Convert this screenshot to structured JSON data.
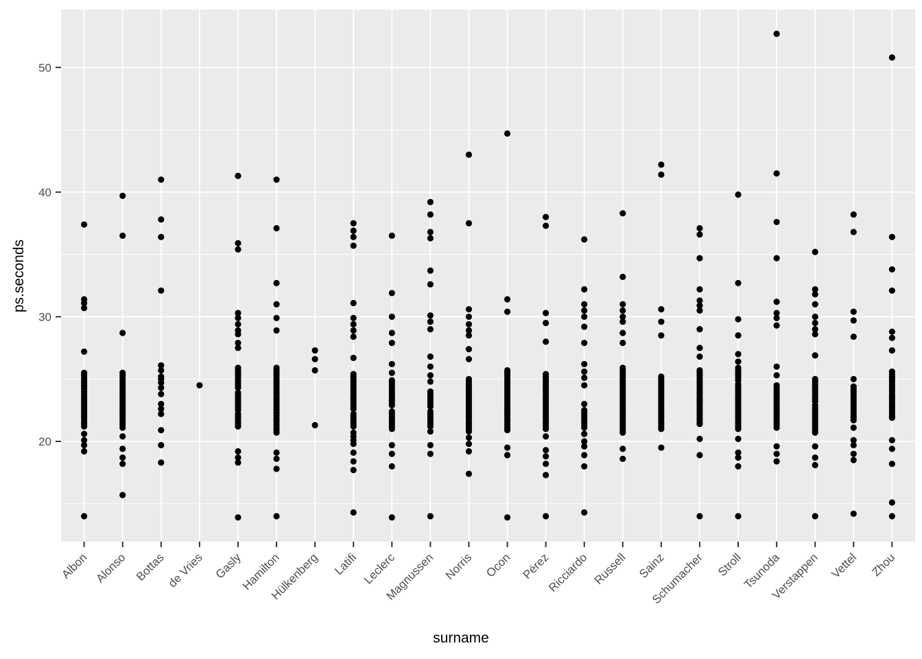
{
  "figure": {
    "background": "#FFFFFF"
  },
  "chart_data": {
    "type": "scatter",
    "title": "",
    "xlabel": "surname",
    "ylabel": "ps.seconds",
    "legend": "none",
    "grid": "on",
    "panel_background": "#EBEBEB",
    "gridline_color": "#FFFFFF",
    "point_color": "#000000",
    "tick_label_color": "#4D4D4D",
    "tick_mark_color": "#333333",
    "axis_title_color": "#000000",
    "ylim": [
      11.96,
      54.64
    ],
    "y_ticks": [
      20,
      30,
      40,
      50
    ],
    "y_minor_ticks": [
      15,
      25,
      35,
      45
    ],
    "x_categories": [
      "Albon",
      "Alonso",
      "Bottas",
      "de Vries",
      "Gasly",
      "Hamilton",
      "Hülkenberg",
      "Latifi",
      "Leclerc",
      "Magnussen",
      "Norris",
      "Ocon",
      "Pérez",
      "Ricciardo",
      "Russell",
      "Sainz",
      "Schumacher",
      "Stroll",
      "Tsunoda",
      "Verstappen",
      "Vettel",
      "Zhou"
    ],
    "series": [
      {
        "name": "Albon",
        "values": [
          37.4,
          31.4,
          31.1,
          30.7,
          27.2,
          25.5,
          25.3,
          25.1,
          24.9,
          24.7,
          24.5,
          24.4,
          24.2,
          24.0,
          23.8,
          23.6,
          23.4,
          23.2,
          23.0,
          22.8,
          22.6,
          22.4,
          22.2,
          22.0,
          21.8,
          21.6,
          21.4,
          21.2,
          20.6,
          20.1,
          19.7,
          19.2,
          14.0
        ]
      },
      {
        "name": "Alonso",
        "values": [
          39.7,
          36.5,
          28.7,
          25.5,
          25.3,
          25.1,
          24.9,
          24.7,
          24.5,
          24.3,
          24.1,
          23.9,
          23.7,
          23.5,
          23.3,
          23.1,
          22.9,
          22.7,
          22.5,
          22.3,
          22.1,
          21.9,
          21.7,
          21.5,
          21.3,
          21.1,
          20.4,
          19.4,
          18.7,
          18.2,
          15.7
        ]
      },
      {
        "name": "Bottas",
        "values": [
          41.0,
          37.8,
          36.4,
          32.1,
          26.1,
          25.7,
          25.2,
          25.0,
          24.7,
          24.3,
          23.8,
          23.0,
          22.6,
          22.2,
          20.9,
          19.7,
          18.3
        ]
      },
      {
        "name": "de Vries",
        "values": [
          24.5
        ]
      },
      {
        "name": "Gasly",
        "values": [
          41.3,
          35.9,
          35.4,
          30.3,
          29.9,
          29.4,
          28.9,
          28.6,
          27.9,
          27.5,
          25.9,
          25.7,
          25.5,
          25.3,
          25.1,
          24.9,
          24.7,
          24.5,
          24.3,
          23.9,
          23.7,
          23.5,
          23.3,
          23.1,
          22.9,
          22.7,
          22.5,
          22.2,
          22.0,
          21.8,
          21.6,
          21.4,
          21.2,
          19.2,
          18.7,
          18.3,
          13.9
        ]
      },
      {
        "name": "Hamilton",
        "values": [
          41.0,
          37.1,
          32.7,
          31.0,
          29.9,
          28.9,
          25.9,
          25.7,
          25.5,
          25.3,
          25.1,
          24.9,
          24.7,
          24.5,
          24.3,
          24.1,
          23.9,
          23.7,
          23.5,
          23.3,
          23.1,
          22.9,
          22.7,
          22.5,
          22.3,
          22.1,
          21.9,
          21.7,
          21.5,
          21.3,
          21.1,
          20.9,
          20.7,
          19.1,
          18.6,
          17.8,
          14.0
        ]
      },
      {
        "name": "Hülkenberg",
        "values": [
          27.3,
          26.6,
          25.7,
          21.3
        ]
      },
      {
        "name": "Latifi",
        "values": [
          37.5,
          36.9,
          36.4,
          35.7,
          31.1,
          29.9,
          29.4,
          28.9,
          28.4,
          26.7,
          25.4,
          25.2,
          25.0,
          24.8,
          24.6,
          24.4,
          24.2,
          24.0,
          23.8,
          23.6,
          23.4,
          23.2,
          23.0,
          22.8,
          22.6,
          22.2,
          22.0,
          21.8,
          21.6,
          21.4,
          21.2,
          20.7,
          20.4,
          20.1,
          19.8,
          19.1,
          18.4,
          17.7,
          14.3
        ]
      },
      {
        "name": "Leclerc",
        "values": [
          36.5,
          31.9,
          30.0,
          28.7,
          27.9,
          26.2,
          25.5,
          24.9,
          24.7,
          24.5,
          24.3,
          24.1,
          23.9,
          23.7,
          23.5,
          23.3,
          23.1,
          22.9,
          22.4,
          22.2,
          22.0,
          21.8,
          21.6,
          21.4,
          21.2,
          21.0,
          19.7,
          19.0,
          18.0,
          13.9
        ]
      },
      {
        "name": "Magnussen",
        "values": [
          39.2,
          38.2,
          36.8,
          36.3,
          33.7,
          32.6,
          30.1,
          29.6,
          29.0,
          26.8,
          26.0,
          25.3,
          24.8,
          24.0,
          23.8,
          23.6,
          23.4,
          23.2,
          23.0,
          22.8,
          22.4,
          22.2,
          22.0,
          21.8,
          21.6,
          21.4,
          21.2,
          20.8,
          19.7,
          19.0,
          14.0
        ]
      },
      {
        "name": "Norris",
        "values": [
          43.0,
          37.5,
          30.6,
          30.0,
          29.4,
          28.9,
          28.5,
          27.4,
          26.6,
          25.0,
          24.8,
          24.6,
          24.4,
          24.2,
          24.0,
          23.8,
          23.6,
          23.4,
          23.2,
          23.0,
          22.8,
          22.6,
          22.4,
          22.2,
          22.0,
          21.8,
          21.6,
          21.4,
          21.2,
          21.0,
          20.8,
          20.3,
          19.8,
          19.2,
          17.4
        ]
      },
      {
        "name": "Ocon",
        "values": [
          44.7,
          31.4,
          30.4,
          25.7,
          25.5,
          25.3,
          25.1,
          24.9,
          24.7,
          24.5,
          24.3,
          24.1,
          23.9,
          23.7,
          23.5,
          23.3,
          23.1,
          22.9,
          22.7,
          22.5,
          22.3,
          22.1,
          21.9,
          21.7,
          21.5,
          21.3,
          21.1,
          20.9,
          19.5,
          18.9,
          13.9
        ]
      },
      {
        "name": "Pérez",
        "values": [
          38.0,
          37.3,
          30.3,
          29.5,
          28.0,
          25.4,
          25.2,
          25.0,
          24.8,
          24.6,
          24.4,
          24.2,
          24.0,
          23.8,
          23.6,
          23.4,
          23.2,
          23.0,
          22.8,
          22.6,
          22.4,
          22.2,
          22.0,
          21.8,
          21.6,
          21.4,
          21.2,
          21.0,
          20.4,
          19.3,
          18.8,
          18.2,
          17.3,
          14.0
        ]
      },
      {
        "name": "Ricciardo",
        "values": [
          36.2,
          32.2,
          31.0,
          30.5,
          30.0,
          29.2,
          27.9,
          26.2,
          25.6,
          25.1,
          24.5,
          23.0,
          22.5,
          22.3,
          22.1,
          21.9,
          21.7,
          21.5,
          21.3,
          21.1,
          20.6,
          20.0,
          19.6,
          18.9,
          18.0,
          14.3
        ]
      },
      {
        "name": "Russell",
        "values": [
          38.3,
          33.2,
          31.0,
          30.5,
          30.0,
          29.6,
          28.7,
          27.9,
          25.9,
          25.7,
          25.5,
          25.3,
          25.1,
          24.9,
          24.7,
          24.5,
          24.3,
          24.1,
          23.9,
          23.7,
          23.5,
          23.3,
          23.1,
          22.9,
          22.7,
          22.5,
          22.3,
          22.1,
          21.9,
          21.7,
          21.5,
          21.3,
          21.1,
          20.9,
          20.7,
          19.4,
          18.6
        ]
      },
      {
        "name": "Sainz",
        "values": [
          42.2,
          41.4,
          30.6,
          29.6,
          28.5,
          25.2,
          25.0,
          24.8,
          24.6,
          24.4,
          24.2,
          24.0,
          23.8,
          23.6,
          23.4,
          23.2,
          23.0,
          22.8,
          22.6,
          22.4,
          22.2,
          22.0,
          21.8,
          21.6,
          21.4,
          21.2,
          21.0,
          19.5
        ]
      },
      {
        "name": "Schumacher",
        "values": [
          37.1,
          36.6,
          34.7,
          32.2,
          31.3,
          30.9,
          30.5,
          29.0,
          27.5,
          26.8,
          25.7,
          25.5,
          25.3,
          25.1,
          24.9,
          24.7,
          24.5,
          24.3,
          24.1,
          23.9,
          23.7,
          23.5,
          23.3,
          23.1,
          22.9,
          22.7,
          22.5,
          22.3,
          22.1,
          21.9,
          21.7,
          21.5,
          21.4,
          20.2,
          18.9,
          14.0
        ]
      },
      {
        "name": "Stroll",
        "values": [
          39.8,
          32.7,
          29.8,
          28.5,
          27.0,
          26.4,
          25.9,
          25.7,
          25.5,
          25.3,
          25.1,
          24.9,
          24.6,
          24.4,
          24.2,
          24.0,
          23.8,
          23.6,
          23.4,
          23.2,
          23.0,
          22.8,
          22.6,
          22.4,
          22.2,
          22.0,
          21.8,
          21.6,
          21.4,
          21.2,
          21.0,
          20.2,
          19.1,
          18.7,
          18.0,
          14.0
        ]
      },
      {
        "name": "Tsunoda",
        "values": [
          52.7,
          41.5,
          37.6,
          34.7,
          31.2,
          30.3,
          29.9,
          29.3,
          26.0,
          25.3,
          24.5,
          24.3,
          24.1,
          23.9,
          23.7,
          23.5,
          23.3,
          23.1,
          22.9,
          22.7,
          22.5,
          22.3,
          22.1,
          21.9,
          21.7,
          21.5,
          21.3,
          21.1,
          19.6,
          19.0,
          18.4
        ]
      },
      {
        "name": "Verstappen",
        "values": [
          35.2,
          32.2,
          31.8,
          31.0,
          30.0,
          29.5,
          29.0,
          28.6,
          26.9,
          25.0,
          24.8,
          24.6,
          24.4,
          24.2,
          24.0,
          23.8,
          23.6,
          23.4,
          23.2,
          22.9,
          22.7,
          22.5,
          22.3,
          22.1,
          21.9,
          21.7,
          21.5,
          21.3,
          21.1,
          20.9,
          20.7,
          19.6,
          18.7,
          18.1,
          14.0
        ]
      },
      {
        "name": "Vettel",
        "values": [
          38.2,
          36.8,
          30.4,
          29.7,
          28.4,
          25.0,
          24.4,
          24.2,
          24.0,
          23.8,
          23.6,
          23.4,
          23.2,
          23.0,
          22.8,
          22.6,
          22.4,
          22.2,
          22.0,
          21.9,
          21.7,
          21.1,
          20.1,
          19.7,
          19.0,
          18.5,
          14.2
        ]
      },
      {
        "name": "Zhou",
        "values": [
          50.8,
          36.4,
          33.8,
          32.1,
          28.8,
          28.3,
          27.3,
          25.6,
          25.4,
          25.2,
          25.0,
          24.8,
          24.6,
          24.4,
          24.2,
          24.0,
          23.8,
          23.6,
          23.4,
          23.2,
          23.0,
          22.8,
          22.6,
          22.4,
          22.2,
          22.0,
          21.9,
          20.1,
          19.4,
          18.2,
          15.1,
          14.0
        ]
      }
    ]
  }
}
